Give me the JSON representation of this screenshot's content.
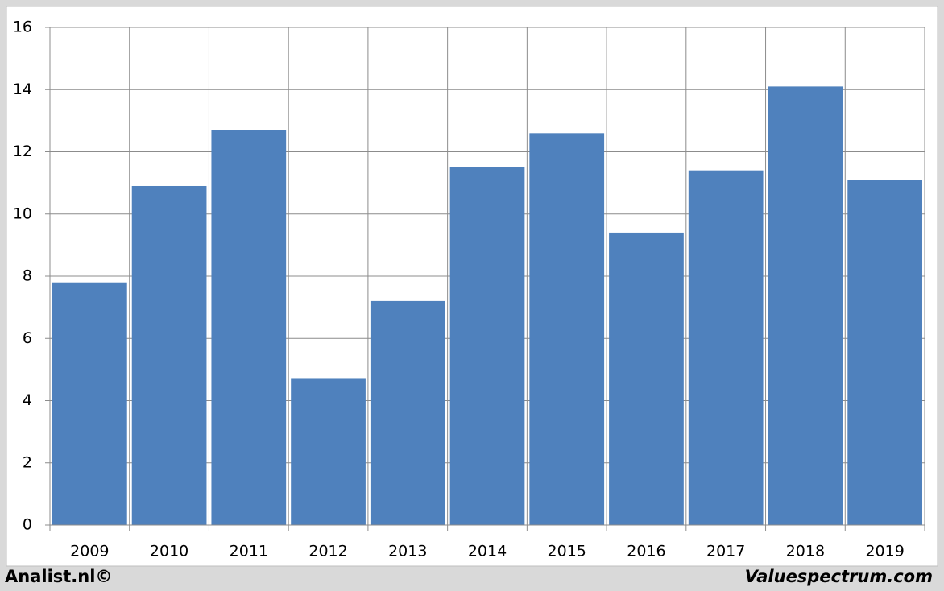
{
  "chart_data": {
    "type": "bar",
    "categories": [
      "2009",
      "2010",
      "2011",
      "2012",
      "2013",
      "2014",
      "2015",
      "2016",
      "2017",
      "2018",
      "2019"
    ],
    "values": [
      7.8,
      10.9,
      12.7,
      4.7,
      7.2,
      11.5,
      12.6,
      9.4,
      11.4,
      14.1,
      11.1
    ],
    "color": "#4f81bd",
    "ylim": [
      0,
      16
    ],
    "yticks": [
      0,
      2,
      4,
      6,
      8,
      10,
      12,
      14,
      16
    ],
    "grid": true
  },
  "footer": {
    "left": "Analist.nl©",
    "right": "Valuespectrum.com"
  }
}
